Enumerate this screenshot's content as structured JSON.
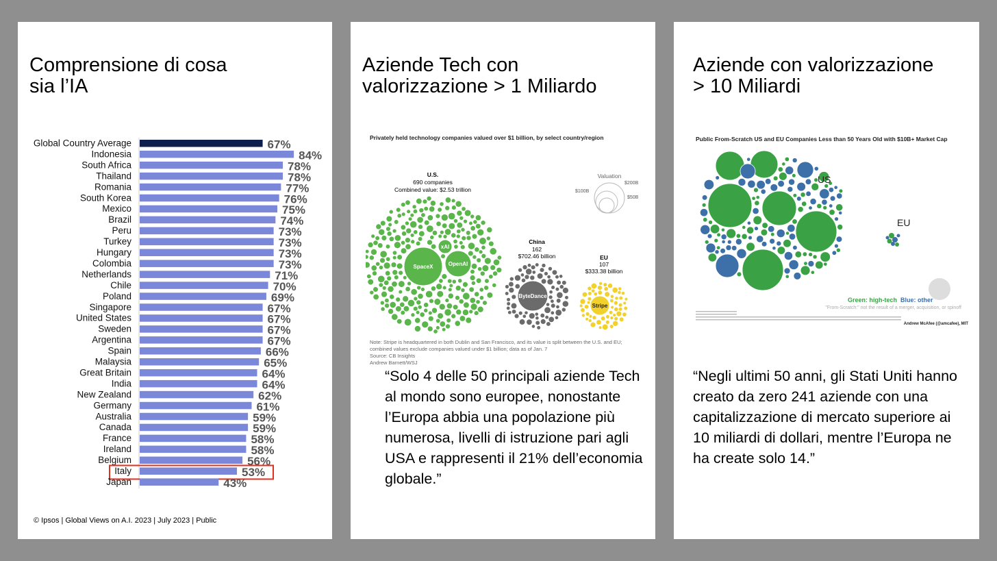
{
  "panel1": {
    "title": "Comprensione di cosa\nsia l’IA",
    "source": "© Ipsos | Global Views on A.I. 2023 | July 2023 | Public",
    "highlight_country": "Italy"
  },
  "chart_data": [
    {
      "type": "bar",
      "orientation": "horizontal",
      "categories": [
        "Global Country Average",
        "Indonesia",
        "South Africa",
        "Thailand",
        "Romania",
        "South Korea",
        "Mexico",
        "Brazil",
        "Peru",
        "Turkey",
        "Hungary",
        "Colombia",
        "Netherlands",
        "Chile",
        "Poland",
        "Singapore",
        "United States",
        "Sweden",
        "Argentina",
        "Spain",
        "Malaysia",
        "Great Britain",
        "India",
        "New Zealand",
        "Germany",
        "Australia",
        "Canada",
        "France",
        "Ireland",
        "Belgium",
        "Italy",
        "Japan"
      ],
      "values": [
        67,
        84,
        78,
        78,
        77,
        76,
        75,
        74,
        73,
        73,
        73,
        73,
        71,
        70,
        69,
        67,
        67,
        67,
        67,
        66,
        65,
        64,
        64,
        62,
        61,
        59,
        59,
        58,
        58,
        56,
        53,
        43
      ],
      "labels": [
        "67%",
        "84%",
        "78%",
        "78%",
        "77%",
        "76%",
        "75%",
        "74%",
        "73%",
        "73%",
        "73%",
        "73%",
        "71%",
        "70%",
        "69%",
        "67%",
        "67%",
        "67%",
        "67%",
        "66%",
        "65%",
        "64%",
        "64%",
        "62%",
        "61%",
        "59%",
        "59%",
        "58%",
        "58%",
        "56%",
        "53%",
        "43%"
      ],
      "xlim": [
        0,
        100
      ],
      "colors": {
        "average": "#0e1f4d",
        "bar": "#7b87d9",
        "label": "#555555",
        "highlight": "#e0301e"
      }
    },
    {
      "type": "bubble",
      "title": "Privately held technology companies valued over $1 billion, by select country/region",
      "groups": [
        {
          "name": "U.S.",
          "companies": "690 companies",
          "value": "Combined value: $2.53 trillion",
          "color": "#5ab54b"
        },
        {
          "name": "China",
          "companies": "162",
          "value": "$702.46 billion",
          "color": "#6b6b6b"
        },
        {
          "name": "EU",
          "companies": "107",
          "value": "$333.38 billion",
          "color": "#f3d12c"
        }
      ],
      "bubble_labels": [
        "SpaceX",
        "OpenAI",
        "xAI",
        "ByteDance",
        "Stripe"
      ],
      "legend": {
        "title": "Valuation",
        "sizes": [
          "$200B",
          "$100B",
          "$50B"
        ]
      },
      "note": "Note: Stripe is headquartered in both Dublin and San Francisco, and its value is split between the U.S. and EU; combined values exclude companies valued under $1 billion; data as of Jan. 7",
      "source": "Source: CB Insights",
      "credit": "Andrew Barnett/WSJ"
    },
    {
      "type": "bubble",
      "title": "Public From-Scratch US and EU Companies Less than 50 Years Old with $10B+ Market Cap",
      "groups": [
        {
          "name": "US",
          "color": "#3aa245"
        },
        {
          "name": "EU",
          "color": "#3d6fa8"
        }
      ],
      "legend": {
        "green": "Green: high-tech",
        "blue": "Blue: other",
        "note": "\"From-Scratch:\" not the result of a merger, acquisition, or spinoff"
      },
      "credit": "Andrew McAfee (@amcafee), MIT"
    }
  ],
  "panel2": {
    "title": "Aziende Tech con\nvalorizzazione > 1 Miliardo",
    "quote": "“Solo 4 delle 50 principali aziende Tech al mondo sono europee, nonostante l’Europa abbia una popolazione più numerosa, livelli di istruzione pari agli USA e rappresenti il 21% dell’economia globale.”"
  },
  "panel3": {
    "title": "Aziende con valorizzazione\n> 10 Miliardi",
    "quote": "“Negli ultimi 50 anni, gli Stati Uniti hanno creato da zero 241 aziende con una capitalizzazione di mercato superiore ai 10 miliardi di dollari, mentre l’Europa ne ha create solo 14.”"
  }
}
